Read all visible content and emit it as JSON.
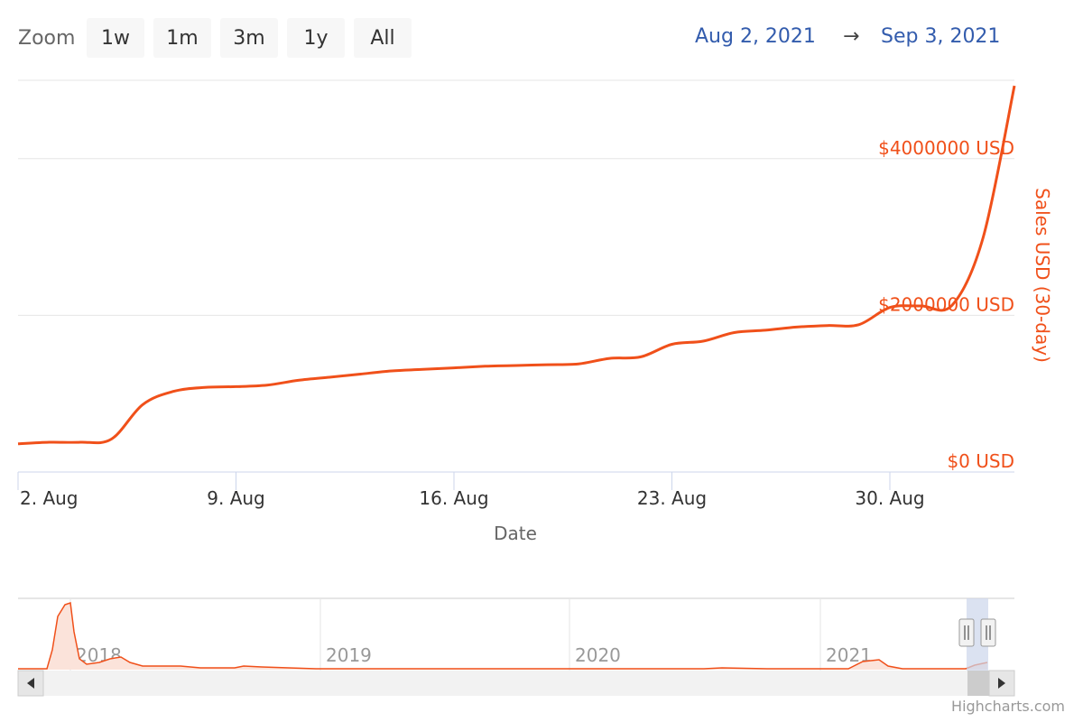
{
  "zoom": {
    "label": "Zoom",
    "buttons": [
      "1w",
      "1m",
      "3m",
      "1y",
      "All"
    ]
  },
  "range": {
    "from": "Aug 2, 2021",
    "arrow": "→",
    "to": "Sep 3, 2021"
  },
  "credits": "Highcharts.com",
  "colors": {
    "series": "#f0501a",
    "grid": "#e6e6e6",
    "axis": "#ccd6eb",
    "navigator_mask": "#ccd6eb"
  },
  "chart_data": {
    "type": "line",
    "xlabel": "Date",
    "ylabel": "Sales USD (30-day)",
    "yaxis_position": "right",
    "ylim": [
      0,
      5000000
    ],
    "xlim": [
      "2021-08-02",
      "2021-09-03"
    ],
    "xticks": [
      {
        "date": "2021-08-02",
        "label": "2. Aug"
      },
      {
        "date": "2021-08-09",
        "label": "9. Aug"
      },
      {
        "date": "2021-08-16",
        "label": "16. Aug"
      },
      {
        "date": "2021-08-23",
        "label": "23. Aug"
      },
      {
        "date": "2021-08-30",
        "label": "30. Aug"
      }
    ],
    "yticks": [
      {
        "value": 0,
        "label": "$0 USD"
      },
      {
        "value": 2000000,
        "label": "$2000000 USD"
      },
      {
        "value": 4000000,
        "label": "$4000000 USD"
      }
    ],
    "series": [
      {
        "x": [
          "2021-08-02",
          "2021-08-03",
          "2021-08-04",
          "2021-08-05",
          "2021-08-06",
          "2021-08-07",
          "2021-08-08",
          "2021-08-09",
          "2021-08-10",
          "2021-08-11",
          "2021-08-12",
          "2021-08-13",
          "2021-08-14",
          "2021-08-15",
          "2021-08-16",
          "2021-08-17",
          "2021-08-18",
          "2021-08-19",
          "2021-08-20",
          "2021-08-21",
          "2021-08-22",
          "2021-08-23",
          "2021-08-24",
          "2021-08-25",
          "2021-08-26",
          "2021-08-27",
          "2021-08-28",
          "2021-08-29",
          "2021-08-30",
          "2021-08-31",
          "2021-09-01",
          "2021-09-02",
          "2021-09-03"
        ],
        "values": [
          360000,
          380000,
          380000,
          420000,
          860000,
          1030000,
          1080000,
          1090000,
          1110000,
          1170000,
          1210000,
          1250000,
          1290000,
          1310000,
          1330000,
          1350000,
          1360000,
          1370000,
          1380000,
          1450000,
          1470000,
          1630000,
          1670000,
          1780000,
          1810000,
          1850000,
          1870000,
          1880000,
          2100000,
          2120000,
          2130000,
          3000000,
          4930000
        ]
      }
    ],
    "navigator": {
      "labels": [
        "2018",
        "2019",
        "2020",
        "2021"
      ]
    }
  }
}
